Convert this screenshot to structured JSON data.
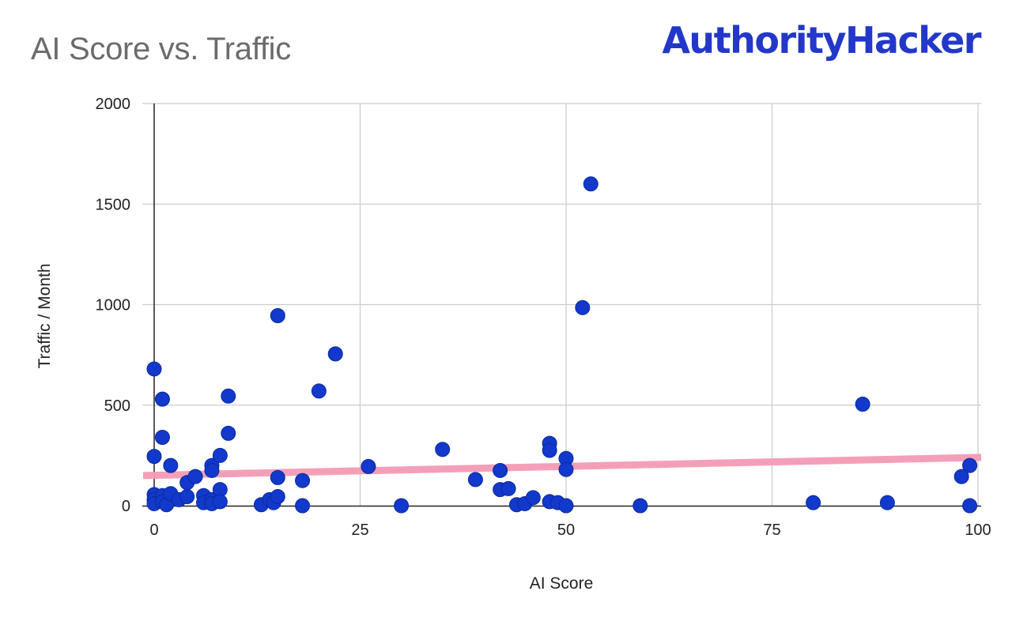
{
  "header": {
    "title": "AI Score vs. Traffic",
    "brand": "AuthorityHacker"
  },
  "colors": {
    "point": "#1239cc",
    "point_stroke": "#0a2a9a",
    "trendline": "#f49ab5",
    "grid": "#cccccc",
    "axis": "#222222",
    "title": "#6b6b6b",
    "brand": "#2338c9"
  },
  "chart_data": {
    "type": "scatter",
    "title": "AI Score vs. Traffic",
    "xlabel": "AI Score",
    "ylabel": "Traffic / Month",
    "xlim": [
      0,
      100
    ],
    "ylim": [
      0,
      2000
    ],
    "xticks": [
      0,
      25,
      50,
      75,
      100
    ],
    "yticks": [
      0,
      500,
      1000,
      1500,
      2000
    ],
    "grid": true,
    "legend": "none",
    "trendline": {
      "type": "linear",
      "start": [
        0,
        150
      ],
      "end": [
        100,
        240
      ]
    },
    "points": [
      [
        0,
        680
      ],
      [
        0,
        245
      ],
      [
        0,
        55
      ],
      [
        0,
        30
      ],
      [
        0,
        10
      ],
      [
        1,
        530
      ],
      [
        1,
        340
      ],
      [
        1,
        50
      ],
      [
        1,
        20
      ],
      [
        1.5,
        5
      ],
      [
        2,
        200
      ],
      [
        2,
        60
      ],
      [
        3,
        30
      ],
      [
        4,
        115
      ],
      [
        4,
        45
      ],
      [
        5,
        145
      ],
      [
        6,
        50
      ],
      [
        6,
        15
      ],
      [
        7,
        200
      ],
      [
        7,
        175
      ],
      [
        7,
        30
      ],
      [
        7,
        10
      ],
      [
        8,
        250
      ],
      [
        8,
        80
      ],
      [
        8,
        20
      ],
      [
        9,
        545
      ],
      [
        9,
        360
      ],
      [
        13,
        5
      ],
      [
        14,
        30
      ],
      [
        14.5,
        15
      ],
      [
        15,
        945
      ],
      [
        15,
        140
      ],
      [
        15,
        45
      ],
      [
        18,
        125
      ],
      [
        18,
        0
      ],
      [
        20,
        570
      ],
      [
        22,
        755
      ],
      [
        26,
        195
      ],
      [
        30,
        0
      ],
      [
        35,
        280
      ],
      [
        39,
        130
      ],
      [
        42,
        175
      ],
      [
        42,
        80
      ],
      [
        43,
        85
      ],
      [
        44,
        5
      ],
      [
        45,
        10
      ],
      [
        46,
        40
      ],
      [
        48,
        310
      ],
      [
        48,
        275
      ],
      [
        48,
        20
      ],
      [
        49,
        15
      ],
      [
        50,
        235
      ],
      [
        50,
        180
      ],
      [
        50,
        0
      ],
      [
        52,
        985
      ],
      [
        53,
        1600
      ],
      [
        59,
        0
      ],
      [
        80,
        15
      ],
      [
        86,
        505
      ],
      [
        89,
        15
      ],
      [
        98,
        145
      ],
      [
        99,
        200
      ],
      [
        99,
        0
      ]
    ]
  }
}
